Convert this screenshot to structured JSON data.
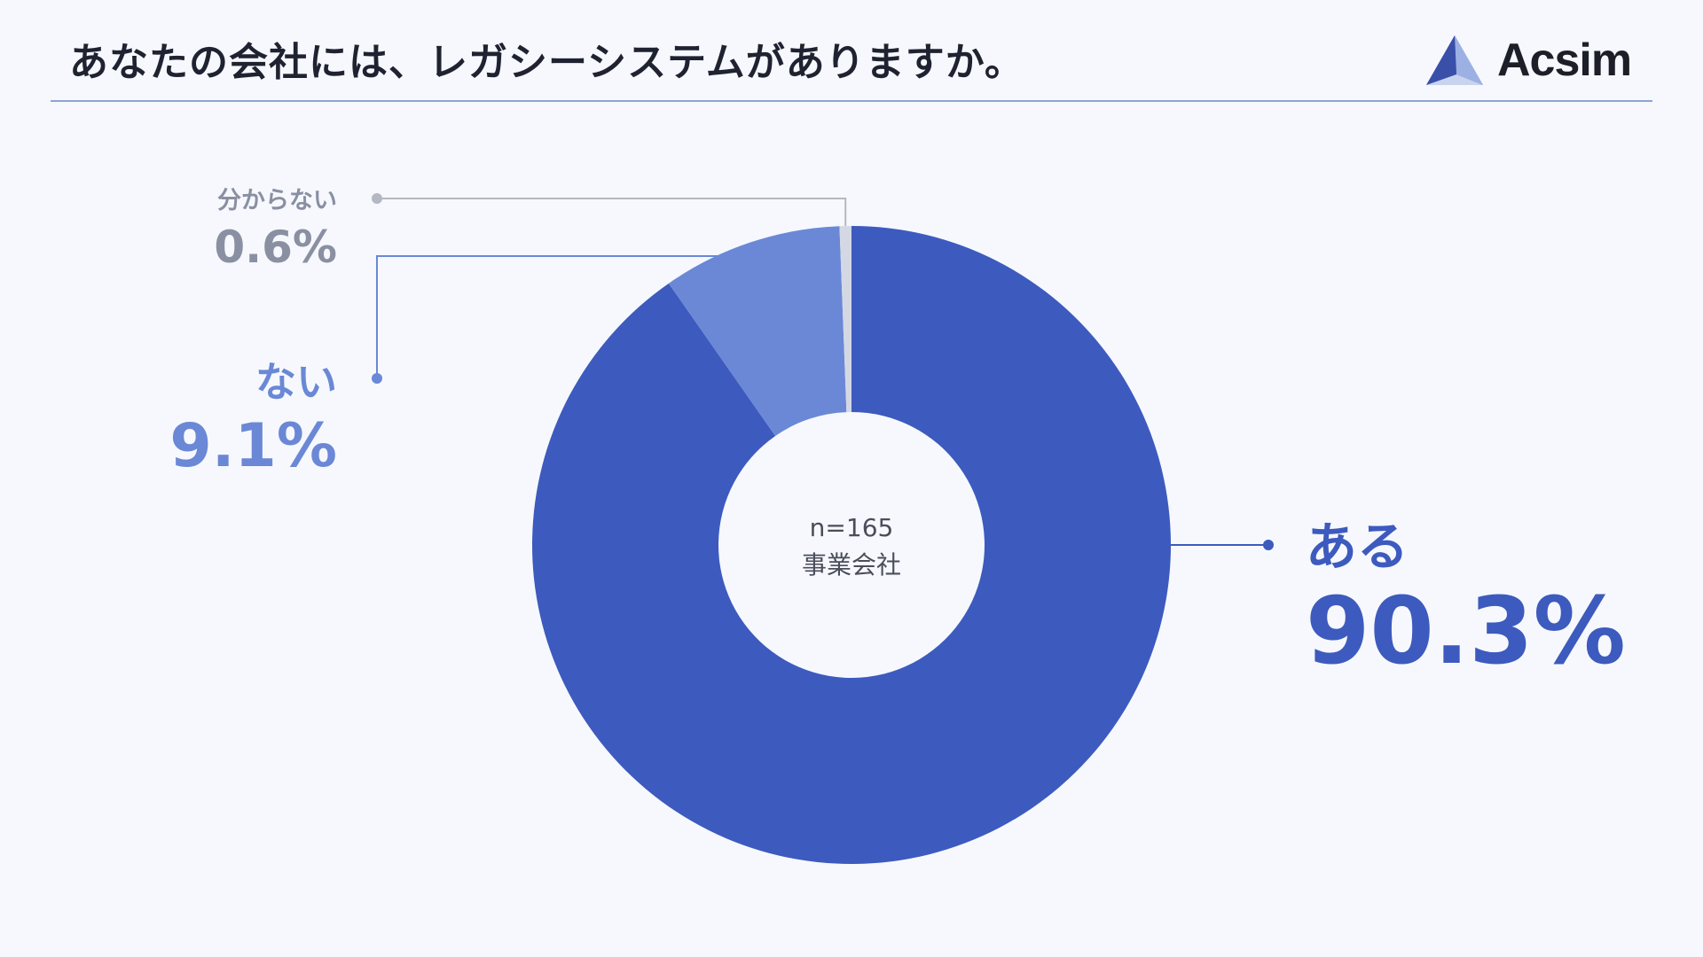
{
  "header": {
    "title": "あなたの会社には、レガシーシステムがありますか。",
    "brand_name": "Acsim",
    "brand_logo_icon": "triangle-prism-icon"
  },
  "colors": {
    "background": "#f6f8fd",
    "aru": "#3d5abe",
    "nai": "#6b88d6",
    "wakaranai": "#d3d8e4",
    "connector_unknown": "#b4b8c2",
    "label_unknown": "#8a90a2",
    "header_rule": "#8ea4d6"
  },
  "chart_data": {
    "type": "pie",
    "donut": true,
    "title": "あなたの会社には、レガシーシステムがありますか。",
    "center_label": [
      "n=165",
      "事業会社"
    ],
    "unit": "%",
    "categories": [
      "ある",
      "ない",
      "分からない"
    ],
    "values": [
      90.3,
      9.1,
      0.6
    ],
    "value_labels": [
      "90.3%",
      "9.1%",
      "0.6%"
    ],
    "start_angle_deg": 0,
    "direction": "clockwise",
    "legend": "none",
    "labels_outside_with_leader_lines": true
  }
}
